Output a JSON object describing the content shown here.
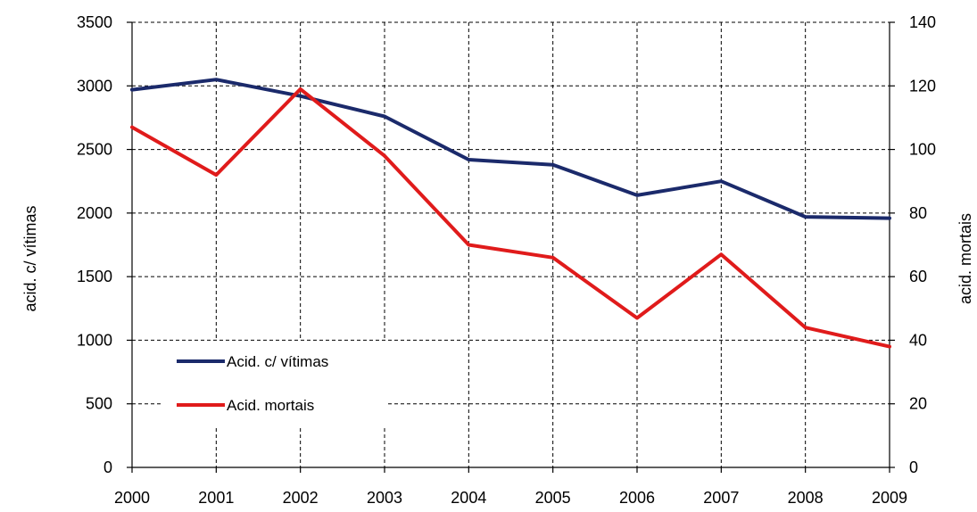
{
  "chart_data": {
    "type": "line",
    "title": "",
    "x": [
      "2000",
      "2001",
      "2002",
      "2003",
      "2004",
      "2005",
      "2006",
      "2007",
      "2008",
      "2009"
    ],
    "xlabel": "",
    "ylabel_left": "acid. c/ vítimas",
    "ylabel_right": "acid. mortais",
    "ylim_left": [
      0,
      3500
    ],
    "ylim_right": [
      0,
      140
    ],
    "yticks_left": [
      "0",
      "500",
      "1000",
      "1500",
      "2000",
      "2500",
      "3000",
      "3500"
    ],
    "yticks_right": [
      "0",
      "20",
      "40",
      "60",
      "80",
      "100",
      "120",
      "140"
    ],
    "grid": true,
    "legend_placement": "lower-left",
    "series": [
      {
        "name": "Acid. c/ vítimas",
        "axis": "left",
        "color": "#1b2a6b",
        "values": [
          2970,
          3050,
          2920,
          2760,
          2420,
          2380,
          2140,
          2250,
          1970,
          1960
        ]
      },
      {
        "name": "Acid. mortais",
        "axis": "right",
        "color": "#e01b1b",
        "values": [
          107,
          92,
          119,
          98,
          70,
          66,
          47,
          67,
          44,
          38
        ]
      }
    ]
  }
}
